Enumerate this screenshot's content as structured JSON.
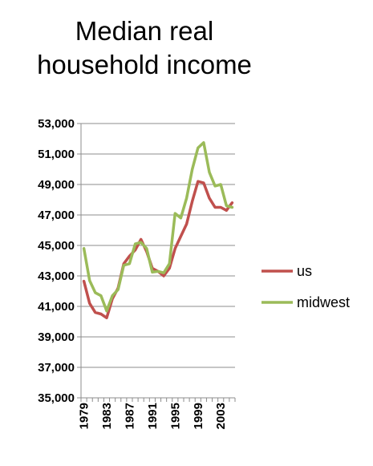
{
  "title_lines": [
    "Median real",
    "household income"
  ],
  "chart_data": {
    "type": "line",
    "title": "Median real household income",
    "xlabel": "",
    "ylabel": "",
    "x": [
      1979,
      1980,
      1981,
      1982,
      1983,
      1984,
      1985,
      1986,
      1987,
      1988,
      1989,
      1990,
      1991,
      1992,
      1993,
      1994,
      1995,
      1996,
      1997,
      1998,
      1999,
      2000,
      2001,
      2002,
      2003,
      2004,
      2005
    ],
    "x_tick_labels": [
      "1979",
      "1983",
      "1987",
      "1991",
      "1995",
      "1999",
      "2003"
    ],
    "y_tick_labels": [
      "35,000",
      "37,000",
      "39,000",
      "41,000",
      "43,000",
      "45,000",
      "47,000",
      "49,000",
      "51,000",
      "53,000"
    ],
    "ylim": [
      35000,
      53000
    ],
    "grid": "horizontal",
    "legend_position": "right",
    "series": [
      {
        "name": "us",
        "color": "#C0504D",
        "values": [
          42650,
          41200,
          40600,
          40500,
          40250,
          41500,
          42200,
          43800,
          44300,
          44700,
          45400,
          44600,
          43500,
          43300,
          43000,
          43500,
          44800,
          45600,
          46400,
          47900,
          49200,
          49100,
          48100,
          47500,
          47500,
          47300,
          47800
        ]
      },
      {
        "name": "midwest",
        "color": "#9BBB59",
        "values": [
          44800,
          42700,
          41900,
          41700,
          40700,
          41700,
          42100,
          43700,
          43800,
          45100,
          45200,
          44800,
          43250,
          43300,
          43200,
          43800,
          47100,
          46800,
          48100,
          50000,
          51400,
          51750,
          49800,
          48900,
          49000,
          47600,
          47500
        ]
      }
    ]
  }
}
